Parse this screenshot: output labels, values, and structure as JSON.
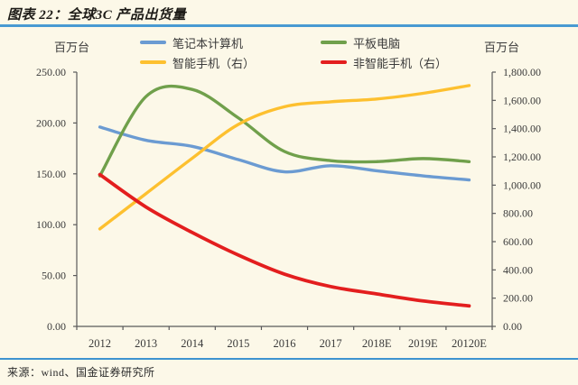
{
  "title": "图表 22：全球3C 产品出货量",
  "source": "来源：wind、国金证券研究所",
  "unit_label_left": "百万台",
  "unit_label_right": "百万台",
  "colors": {
    "background": "#fcf8e8",
    "rule_blue": "#499ad2",
    "axis": "#5a5a5a",
    "tick_text": "#3a3a3a",
    "series_notebook": "#6b9bd2",
    "series_tablet": "#70a04b",
    "series_smartphone": "#fdc02f",
    "series_feature_phone": "#e31e1e"
  },
  "chart_data": {
    "type": "line",
    "title": "全球3C产品出货量",
    "categories": [
      "2012",
      "2013",
      "2014",
      "2015",
      "2016",
      "2017",
      "2018E",
      "2019E",
      "20120E"
    ],
    "series": [
      {
        "name": "笔记本计算机",
        "axis": "left",
        "color": "#6b9bd2",
        "width": 3.4,
        "values": [
          196,
          183,
          177,
          164,
          152,
          158,
          153,
          148,
          144
        ]
      },
      {
        "name": "平板电脑",
        "axis": "left",
        "color": "#70a04b",
        "width": 3.4,
        "values": [
          148,
          226,
          233,
          205,
          172,
          163,
          162,
          165,
          162
        ]
      },
      {
        "name": "智能手机（右）",
        "axis": "right",
        "color": "#fdc02f",
        "width": 3.4,
        "values": [
          690,
          940,
          1190,
          1430,
          1555,
          1590,
          1610,
          1650,
          1705
        ]
      },
      {
        "name": "非智能手机（右）",
        "axis": "right",
        "color": "#e31e1e",
        "width": 3.8,
        "values": [
          1075,
          845,
          665,
          505,
          370,
          282,
          230,
          180,
          145
        ]
      }
    ],
    "left_axis": {
      "unit": "百万台",
      "range": [
        0,
        250
      ],
      "ticks": [
        "250.00",
        "200.00",
        "150.00",
        "100.00",
        "50.00",
        "0.00"
      ]
    },
    "right_axis": {
      "unit": "百万台",
      "range": [
        0,
        1800
      ],
      "ticks": [
        "1,800.00",
        "1,600.00",
        "1,400.00",
        "1,200.00",
        "1,000.00",
        "800.00",
        "600.00",
        "400.00",
        "200.00",
        "0.00"
      ]
    },
    "legend_position": "top",
    "grid": false
  }
}
